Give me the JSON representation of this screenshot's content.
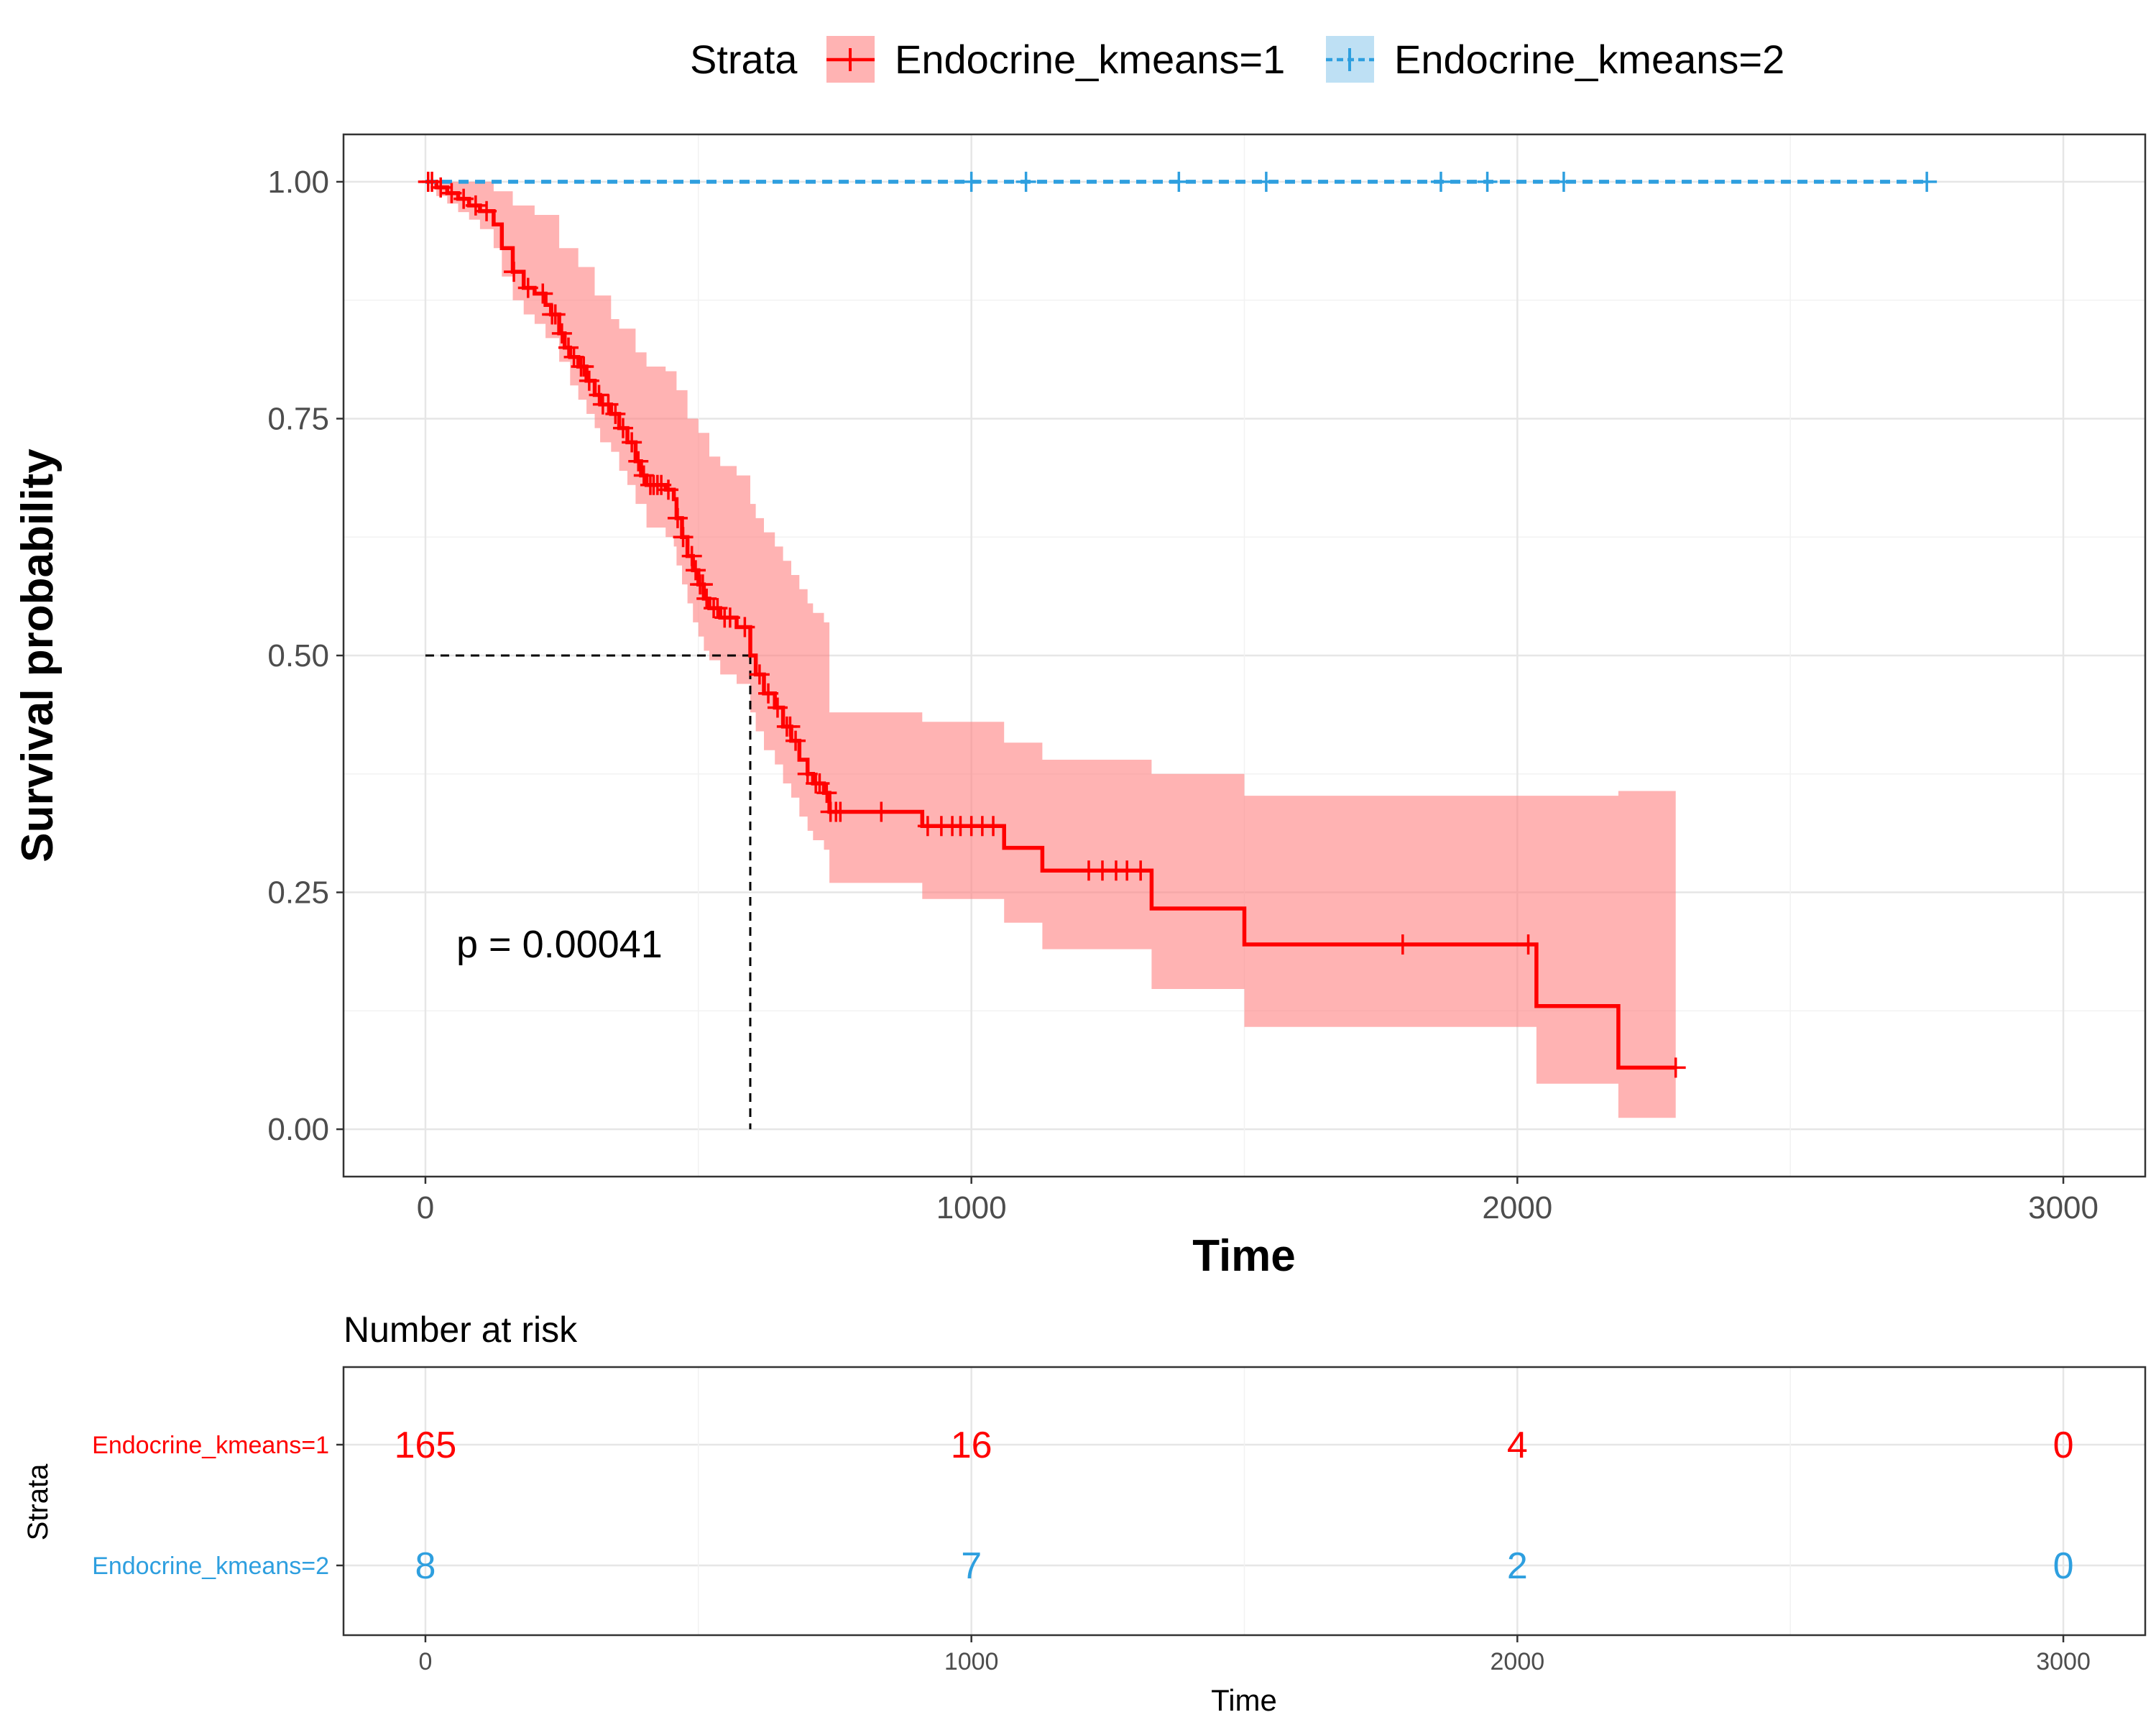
{
  "chart_data": {
    "type": "line",
    "legend": {
      "title": "Strata",
      "position": "top",
      "entries": [
        "Endocrine_kmeans=1",
        "Endocrine_kmeans=2"
      ]
    },
    "xlabel": "Time",
    "ylabel": "Survival probability",
    "xlim": [
      -150,
      3150
    ],
    "ylim": [
      -0.05,
      1.05
    ],
    "x_ticks": [
      0,
      1000,
      2000,
      3000
    ],
    "y_ticks": [
      "0.00",
      "0.25",
      "0.50",
      "0.75",
      "1.00"
    ],
    "grid": true,
    "pvalue_text": "p = 0.00041",
    "median_survival": {
      "time": 595,
      "probability": 0.5
    },
    "series": [
      {
        "name": "Endocrine_kmeans=1",
        "color": "#FF0000",
        "band_color": "#FF8080",
        "line_style": "solid",
        "steps": [
          [
            0,
            1.0
          ],
          [
            20,
            0.994
          ],
          [
            40,
            0.988
          ],
          [
            60,
            0.982
          ],
          [
            80,
            0.975
          ],
          [
            100,
            0.969
          ],
          [
            125,
            0.955
          ],
          [
            140,
            0.93
          ],
          [
            160,
            0.905
          ],
          [
            180,
            0.888
          ],
          [
            200,
            0.882
          ],
          [
            220,
            0.87
          ],
          [
            230,
            0.86
          ],
          [
            245,
            0.84
          ],
          [
            255,
            0.825
          ],
          [
            265,
            0.815
          ],
          [
            280,
            0.805
          ],
          [
            295,
            0.79
          ],
          [
            310,
            0.775
          ],
          [
            320,
            0.765
          ],
          [
            340,
            0.755
          ],
          [
            355,
            0.74
          ],
          [
            370,
            0.725
          ],
          [
            385,
            0.705
          ],
          [
            395,
            0.69
          ],
          [
            405,
            0.68
          ],
          [
            440,
            0.675
          ],
          [
            455,
            0.665
          ],
          [
            460,
            0.645
          ],
          [
            470,
            0.625
          ],
          [
            480,
            0.605
          ],
          [
            490,
            0.59
          ],
          [
            500,
            0.575
          ],
          [
            510,
            0.56
          ],
          [
            520,
            0.55
          ],
          [
            540,
            0.54
          ],
          [
            570,
            0.53
          ],
          [
            595,
            0.5
          ],
          [
            605,
            0.48
          ],
          [
            620,
            0.46
          ],
          [
            640,
            0.445
          ],
          [
            655,
            0.425
          ],
          [
            670,
            0.41
          ],
          [
            685,
            0.39
          ],
          [
            700,
            0.375
          ],
          [
            710,
            0.365
          ],
          [
            730,
            0.355
          ],
          [
            740,
            0.335
          ],
          [
            910,
            0.32
          ],
          [
            1060,
            0.297
          ],
          [
            1130,
            0.273
          ],
          [
            1330,
            0.233
          ],
          [
            1500,
            0.195
          ],
          [
            2035,
            0.13
          ],
          [
            2185,
            0.065
          ],
          [
            2290,
            0.065
          ]
        ],
        "upper": [
          [
            0,
            1.0
          ],
          [
            20,
            1.0
          ],
          [
            100,
            1.0
          ],
          [
            125,
            0.99
          ],
          [
            160,
            0.975
          ],
          [
            200,
            0.965
          ],
          [
            245,
            0.93
          ],
          [
            280,
            0.91
          ],
          [
            310,
            0.88
          ],
          [
            340,
            0.855
          ],
          [
            355,
            0.845
          ],
          [
            385,
            0.82
          ],
          [
            405,
            0.805
          ],
          [
            440,
            0.8
          ],
          [
            460,
            0.78
          ],
          [
            480,
            0.75
          ],
          [
            500,
            0.735
          ],
          [
            520,
            0.71
          ],
          [
            540,
            0.7
          ],
          [
            570,
            0.69
          ],
          [
            595,
            0.66
          ],
          [
            605,
            0.645
          ],
          [
            620,
            0.63
          ],
          [
            640,
            0.615
          ],
          [
            655,
            0.6
          ],
          [
            670,
            0.585
          ],
          [
            685,
            0.57
          ],
          [
            700,
            0.555
          ],
          [
            710,
            0.545
          ],
          [
            730,
            0.535
          ],
          [
            740,
            0.44
          ],
          [
            910,
            0.43
          ],
          [
            1060,
            0.408
          ],
          [
            1130,
            0.39
          ],
          [
            1330,
            0.375
          ],
          [
            1500,
            0.352
          ],
          [
            2035,
            0.352
          ],
          [
            2185,
            0.357
          ],
          [
            2290,
            0.357
          ]
        ],
        "lower": [
          [
            0,
            1.0
          ],
          [
            20,
            0.985
          ],
          [
            40,
            0.977
          ],
          [
            60,
            0.968
          ],
          [
            80,
            0.96
          ],
          [
            100,
            0.95
          ],
          [
            125,
            0.93
          ],
          [
            140,
            0.9
          ],
          [
            160,
            0.875
          ],
          [
            180,
            0.86
          ],
          [
            200,
            0.85
          ],
          [
            220,
            0.835
          ],
          [
            245,
            0.81
          ],
          [
            265,
            0.785
          ],
          [
            280,
            0.77
          ],
          [
            295,
            0.755
          ],
          [
            310,
            0.74
          ],
          [
            320,
            0.725
          ],
          [
            340,
            0.715
          ],
          [
            355,
            0.695
          ],
          [
            370,
            0.68
          ],
          [
            385,
            0.66
          ],
          [
            405,
            0.635
          ],
          [
            440,
            0.625
          ],
          [
            455,
            0.615
          ],
          [
            460,
            0.595
          ],
          [
            470,
            0.575
          ],
          [
            480,
            0.555
          ],
          [
            490,
            0.535
          ],
          [
            500,
            0.52
          ],
          [
            510,
            0.505
          ],
          [
            520,
            0.495
          ],
          [
            540,
            0.48
          ],
          [
            570,
            0.47
          ],
          [
            595,
            0.44
          ],
          [
            605,
            0.42
          ],
          [
            620,
            0.4
          ],
          [
            640,
            0.385
          ],
          [
            655,
            0.365
          ],
          [
            670,
            0.35
          ],
          [
            685,
            0.33
          ],
          [
            700,
            0.315
          ],
          [
            710,
            0.305
          ],
          [
            730,
            0.295
          ],
          [
            740,
            0.26
          ],
          [
            910,
            0.243
          ],
          [
            1060,
            0.218
          ],
          [
            1130,
            0.19
          ],
          [
            1330,
            0.148
          ],
          [
            1500,
            0.108
          ],
          [
            2035,
            0.048
          ],
          [
            2185,
            0.012
          ],
          [
            2290,
            0.012
          ]
        ],
        "censor_times": [
          5,
          12,
          28,
          48,
          70,
          92,
          112,
          162,
          188,
          215,
          232,
          238,
          250,
          262,
          272,
          285,
          290,
          300,
          318,
          325,
          335,
          348,
          362,
          378,
          390,
          400,
          412,
          418,
          425,
          432,
          445,
          462,
          472,
          488,
          495,
          503,
          508,
          515,
          528,
          535,
          548,
          558,
          585,
          612,
          628,
          645,
          662,
          668,
          678,
          700,
          715,
          722,
          735,
          742,
          752,
          760,
          835,
          920,
          945,
          965,
          980,
          1000,
          1020,
          1040,
          1215,
          1240,
          1265,
          1285,
          1310,
          1790,
          2020,
          2290
        ]
      },
      {
        "name": "Endocrine_kmeans=2",
        "color": "#2E9FDF",
        "band_color": "#B3DBF2",
        "line_style": "dashed",
        "steps": [
          [
            0,
            1.0
          ],
          [
            2750,
            1.0
          ]
        ],
        "upper": [],
        "lower": [],
        "censor_times": [
          1000,
          1100,
          1380,
          1540,
          1860,
          1945,
          2085,
          2750
        ]
      }
    ]
  },
  "risk_table": {
    "title": "Number at risk",
    "ylabel": "Strata",
    "xlabel": "Time",
    "x_ticks": [
      "0",
      "1000",
      "2000",
      "3000"
    ],
    "rows": [
      {
        "label": "Endocrine_kmeans=1",
        "color": "#FF0000",
        "values": [
          "165",
          "16",
          "4",
          "0"
        ]
      },
      {
        "label": "Endocrine_kmeans=2",
        "color": "#2E9FDF",
        "values": [
          "8",
          "7",
          "2",
          "0"
        ]
      }
    ]
  }
}
